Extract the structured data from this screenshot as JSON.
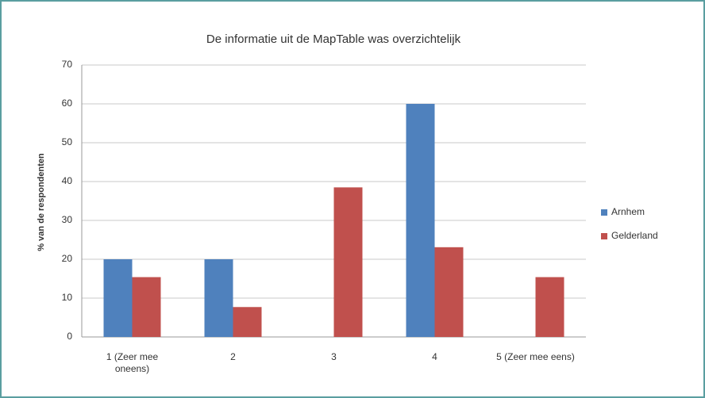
{
  "chart_data": {
    "type": "bar",
    "title": "De informatie uit de MapTable was overzichtelijk",
    "y_label": "% van de respondenten",
    "categories": [
      "1 (Zeer mee oneens)",
      "2",
      "3",
      "4",
      "5 (Zeer mee eens)"
    ],
    "series": [
      {
        "name": "Arnhem",
        "color": "#4f81bd",
        "values": [
          20,
          20,
          0,
          60,
          0
        ]
      },
      {
        "name": "Gelderland",
        "color": "#c0504d",
        "values": [
          15.4,
          7.7,
          38.5,
          23.1,
          15.4
        ]
      }
    ],
    "ylim": [
      0,
      70
    ],
    "yticks": [
      0,
      10,
      20,
      30,
      40,
      50,
      60,
      70
    ],
    "grid": true,
    "legend": "right"
  }
}
